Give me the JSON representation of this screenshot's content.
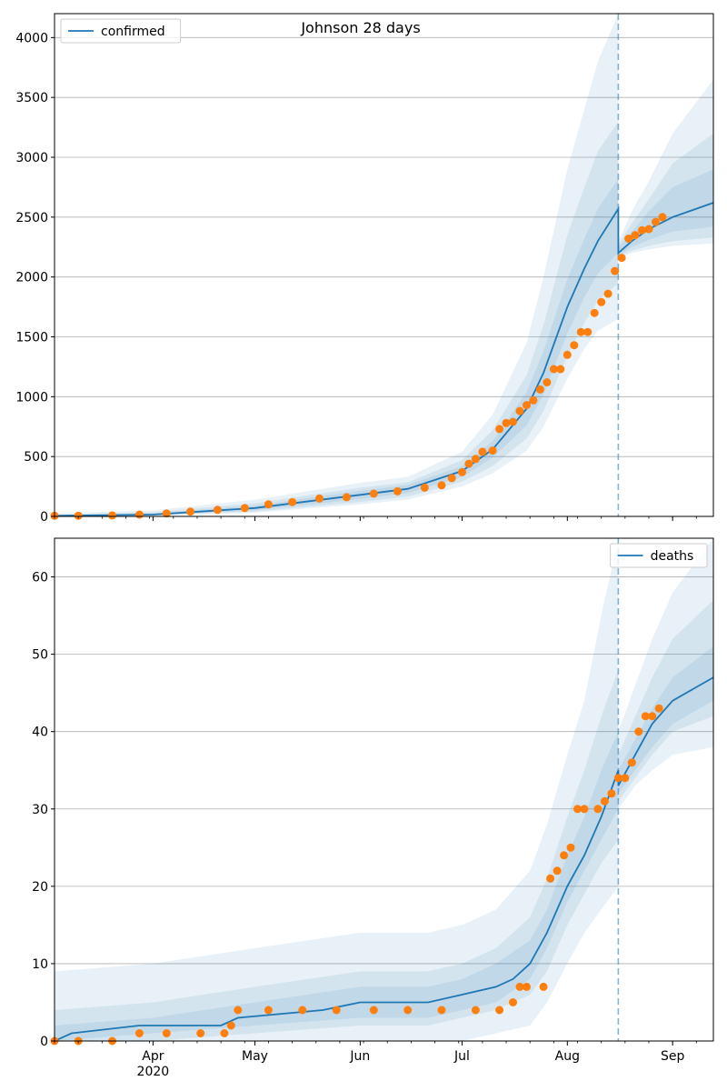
{
  "figure": {
    "title": "Johnson 28 days"
  },
  "colors": {
    "line": "#1f77b4",
    "observed": "#ff7f0e",
    "band": "#1f77b4",
    "grid": "#b0b0b0",
    "axis": "#000000"
  },
  "x_axis": {
    "start_date": "2020-03-03",
    "end_date": "2020-09-13",
    "forecast_date": "2020-08-16",
    "month_labels": [
      "Apr",
      "May",
      "Jun",
      "Jul",
      "Aug",
      "Sep"
    ],
    "month_dates": [
      "2020-04-01",
      "2020-05-01",
      "2020-06-01",
      "2020-07-01",
      "2020-08-01",
      "2020-09-01"
    ],
    "year_label": "2020"
  },
  "chart_data": [
    {
      "type": "line",
      "legend": {
        "label": "confirmed",
        "placement": "top-left"
      },
      "ylim": [
        0,
        4200
      ],
      "yticks": [
        0,
        500,
        1000,
        1500,
        2000,
        2500,
        3000,
        3500,
        4000
      ],
      "grid": true,
      "forecast_line": {
        "dates": [
          "2020-03-03",
          "2020-04-01",
          "2020-05-01",
          "2020-06-01",
          "2020-06-15",
          "2020-07-01",
          "2020-07-10",
          "2020-07-20",
          "2020-07-25",
          "2020-08-01",
          "2020-08-06",
          "2020-08-10",
          "2020-08-16",
          "2020-08-16",
          "2020-08-20",
          "2020-08-25",
          "2020-09-01",
          "2020-09-13"
        ],
        "values": [
          5,
          15,
          70,
          180,
          230,
          380,
          560,
          900,
          1200,
          1750,
          2070,
          2300,
          2570,
          2200,
          2300,
          2400,
          2500,
          2620
        ]
      },
      "bands": [
        {
          "dates": [
            "2020-03-03",
            "2020-04-01",
            "2020-05-01",
            "2020-06-01",
            "2020-06-15",
            "2020-07-01",
            "2020-07-10",
            "2020-07-20",
            "2020-07-25",
            "2020-08-01",
            "2020-08-06",
            "2020-08-10",
            "2020-08-16",
            "2020-08-16",
            "2020-08-20",
            "2020-08-25",
            "2020-09-01",
            "2020-09-13"
          ],
          "low": [
            0,
            5,
            30,
            100,
            140,
            250,
            360,
            550,
            750,
            1150,
            1400,
            1550,
            1650,
            2150,
            2200,
            2230,
            2260,
            2280
          ],
          "high": [
            25,
            50,
            140,
            280,
            330,
            540,
            850,
            1450,
            2000,
            2900,
            3400,
            3800,
            4200,
            2300,
            2550,
            2800,
            3200,
            3650
          ]
        },
        {
          "dates": [
            "2020-03-03",
            "2020-04-01",
            "2020-05-01",
            "2020-06-01",
            "2020-06-15",
            "2020-07-01",
            "2020-07-10",
            "2020-07-20",
            "2020-07-25",
            "2020-08-01",
            "2020-08-06",
            "2020-08-10",
            "2020-08-16",
            "2020-08-16",
            "2020-08-20",
            "2020-08-25",
            "2020-09-01",
            "2020-09-13"
          ],
          "low": [
            2,
            8,
            40,
            120,
            165,
            290,
            420,
            650,
            880,
            1340,
            1620,
            1800,
            1950,
            2170,
            2220,
            2260,
            2300,
            2330
          ],
          "high": [
            15,
            35,
            110,
            240,
            285,
            470,
            720,
            1180,
            1600,
            2350,
            2750,
            3050,
            3300,
            2270,
            2450,
            2650,
            2950,
            3200
          ]
        },
        {
          "dates": [
            "2020-03-03",
            "2020-04-01",
            "2020-05-01",
            "2020-06-01",
            "2020-06-15",
            "2020-07-01",
            "2020-07-10",
            "2020-07-20",
            "2020-07-25",
            "2020-08-01",
            "2020-08-06",
            "2020-08-10",
            "2020-08-16",
            "2020-08-16",
            "2020-08-20",
            "2020-08-25",
            "2020-09-01",
            "2020-09-13"
          ],
          "low": [
            3,
            11,
            52,
            145,
            195,
            330,
            490,
            760,
            1020,
            1530,
            1830,
            2030,
            2200,
            2180,
            2250,
            2310,
            2380,
            2420
          ],
          "high": [
            10,
            25,
            90,
            215,
            262,
            420,
            630,
            1040,
            1380,
            1980,
            2320,
            2570,
            2820,
            2240,
            2380,
            2550,
            2750,
            2900
          ]
        }
      ],
      "observed": {
        "dates": [
          "2020-03-03",
          "2020-03-10",
          "2020-03-20",
          "2020-03-28",
          "2020-04-05",
          "2020-04-12",
          "2020-04-20",
          "2020-04-28",
          "2020-05-05",
          "2020-05-12",
          "2020-05-20",
          "2020-05-28",
          "2020-06-05",
          "2020-06-12",
          "2020-06-20",
          "2020-06-25",
          "2020-06-28",
          "2020-07-01",
          "2020-07-03",
          "2020-07-05",
          "2020-07-07",
          "2020-07-10",
          "2020-07-12",
          "2020-07-14",
          "2020-07-16",
          "2020-07-18",
          "2020-07-20",
          "2020-07-22",
          "2020-07-24",
          "2020-07-26",
          "2020-07-28",
          "2020-07-30",
          "2020-08-01",
          "2020-08-03",
          "2020-08-05",
          "2020-08-07",
          "2020-08-09",
          "2020-08-11",
          "2020-08-13",
          "2020-08-15",
          "2020-08-17",
          "2020-08-19",
          "2020-08-21",
          "2020-08-23",
          "2020-08-25",
          "2020-08-27",
          "2020-08-29"
        ],
        "values": [
          5,
          5,
          8,
          15,
          25,
          40,
          55,
          70,
          100,
          120,
          150,
          160,
          190,
          210,
          240,
          260,
          320,
          370,
          440,
          480,
          540,
          550,
          730,
          780,
          790,
          880,
          930,
          970,
          1060,
          1120,
          1230,
          1230,
          1350,
          1430,
          1540,
          1540,
          1700,
          1790,
          1860,
          2050,
          2160,
          2320,
          2350,
          2390,
          2400,
          2460,
          2500
        ]
      }
    },
    {
      "type": "line",
      "legend": {
        "label": "deaths",
        "placement": "top-right"
      },
      "ylim": [
        0,
        65
      ],
      "yticks": [
        0,
        10,
        20,
        30,
        40,
        50,
        60
      ],
      "grid": true,
      "forecast_line": {
        "dates": [
          "2020-03-03",
          "2020-03-08",
          "2020-03-28",
          "2020-04-21",
          "2020-04-26",
          "2020-05-21",
          "2020-06-01",
          "2020-06-21",
          "2020-07-01",
          "2020-07-11",
          "2020-07-16",
          "2020-07-21",
          "2020-07-26",
          "2020-08-01",
          "2020-08-06",
          "2020-08-11",
          "2020-08-16",
          "2020-08-16",
          "2020-08-21",
          "2020-08-26",
          "2020-09-01",
          "2020-09-13"
        ],
        "values": [
          0,
          1,
          2,
          2,
          3,
          4,
          5,
          5,
          6,
          7,
          8,
          10,
          14,
          20,
          24,
          29,
          35,
          33,
          37,
          41,
          44,
          47
        ]
      },
      "bands": [
        {
          "dates": [
            "2020-03-03",
            "2020-04-01",
            "2020-05-01",
            "2020-06-01",
            "2020-06-21",
            "2020-07-01",
            "2020-07-11",
            "2020-07-21",
            "2020-07-26",
            "2020-08-01",
            "2020-08-06",
            "2020-08-11",
            "2020-08-16",
            "2020-08-16",
            "2020-08-21",
            "2020-08-26",
            "2020-09-01",
            "2020-09-13"
          ],
          "low": [
            0,
            0,
            0,
            0,
            0,
            0,
            1,
            2,
            5,
            10,
            14,
            17,
            20,
            30,
            33,
            35,
            37,
            38
          ],
          "high": [
            9,
            10,
            12,
            14,
            14,
            15,
            17,
            22,
            28,
            37,
            44,
            55,
            65,
            40,
            46,
            52,
            58,
            65
          ]
        },
        {
          "dates": [
            "2020-03-03",
            "2020-04-01",
            "2020-05-01",
            "2020-06-01",
            "2020-06-21",
            "2020-07-01",
            "2020-07-11",
            "2020-07-21",
            "2020-07-26",
            "2020-08-01",
            "2020-08-06",
            "2020-08-11",
            "2020-08-16",
            "2020-08-16",
            "2020-08-21",
            "2020-08-26",
            "2020-09-01",
            "2020-09-13"
          ],
          "low": [
            0,
            0,
            1,
            2,
            2,
            3,
            4,
            6,
            9,
            15,
            19,
            23,
            26,
            31,
            34,
            37,
            40,
            42
          ],
          "high": [
            4,
            5,
            7,
            9,
            9,
            10,
            12,
            16,
            21,
            29,
            35,
            42,
            48,
            37,
            42,
            47,
            52,
            57
          ]
        },
        {
          "dates": [
            "2020-03-03",
            "2020-04-01",
            "2020-05-01",
            "2020-06-01",
            "2020-06-21",
            "2020-07-01",
            "2020-07-11",
            "2020-07-21",
            "2020-07-26",
            "2020-08-01",
            "2020-08-06",
            "2020-08-11",
            "2020-08-16",
            "2020-08-16",
            "2020-08-21",
            "2020-08-26",
            "2020-09-01",
            "2020-09-13"
          ],
          "low": [
            0,
            1,
            2,
            3,
            3,
            4,
            5,
            8,
            12,
            18,
            22,
            26,
            30,
            32,
            35,
            38,
            41,
            44
          ],
          "high": [
            2,
            3,
            5,
            7,
            7,
            8,
            10,
            13,
            17,
            24,
            29,
            35,
            40,
            35,
            39,
            43,
            47,
            51
          ]
        }
      ],
      "observed": {
        "dates": [
          "2020-03-03",
          "2020-03-10",
          "2020-03-20",
          "2020-03-28",
          "2020-04-05",
          "2020-04-15",
          "2020-04-22",
          "2020-04-24",
          "2020-04-26",
          "2020-05-05",
          "2020-05-15",
          "2020-05-25",
          "2020-06-05",
          "2020-06-15",
          "2020-06-25",
          "2020-07-05",
          "2020-07-12",
          "2020-07-16",
          "2020-07-18",
          "2020-07-20",
          "2020-07-25",
          "2020-07-27",
          "2020-07-29",
          "2020-07-31",
          "2020-08-02",
          "2020-08-04",
          "2020-08-06",
          "2020-08-10",
          "2020-08-12",
          "2020-08-14",
          "2020-08-16",
          "2020-08-18",
          "2020-08-20",
          "2020-08-22",
          "2020-08-24",
          "2020-08-26",
          "2020-08-28"
        ],
        "values": [
          0,
          0,
          0,
          1,
          1,
          1,
          1,
          2,
          4,
          4,
          4,
          4,
          4,
          4,
          4,
          4,
          4,
          5,
          7,
          7,
          7,
          21,
          22,
          24,
          25,
          30,
          30,
          30,
          31,
          32,
          34,
          34,
          36,
          40,
          42,
          42,
          43
        ]
      }
    }
  ]
}
